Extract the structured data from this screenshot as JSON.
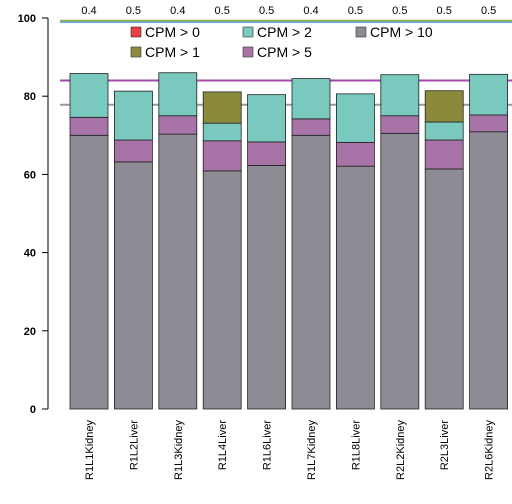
{
  "chart_data": {
    "type": "bar",
    "stacked": true,
    "categories": [
      "R1L1Kidney",
      "R1L2Liver",
      "R1L3Kidney",
      "R1L4Liver",
      "R1L6Liver",
      "R1L7Kidney",
      "R1L8Liver",
      "R2L2Kidney",
      "R2L3Liver",
      "R2L6Kidney"
    ],
    "top_labels": [
      "0.4",
      "0.5",
      "0.4",
      "0.5",
      "0.5",
      "0.4",
      "0.5",
      "0.5",
      "0.5",
      "0.5"
    ],
    "ylim": [
      0,
      100
    ],
    "yticks": [
      "0",
      "20",
      "40",
      "60",
      "80",
      "100"
    ],
    "ytick_values": [
      0,
      20,
      40,
      60,
      80,
      100
    ],
    "series": [
      {
        "name": "CPM > 10",
        "color": "#8e8b94",
        "values": [
          70.0,
          63.2,
          70.3,
          60.9,
          62.3,
          70.0,
          62.1,
          70.5,
          61.4,
          70.9
        ]
      },
      {
        "name": "CPM > 5",
        "color": "#a874a8",
        "values": [
          4.6,
          5.6,
          4.7,
          7.7,
          6.0,
          4.2,
          6.1,
          4.5,
          7.4,
          4.3
        ]
      },
      {
        "name": "CPM > 2",
        "color": "#79c9bf",
        "values": [
          11.2,
          12.5,
          11.0,
          4.5,
          12.1,
          10.3,
          12.4,
          10.5,
          4.6,
          10.4
        ]
      },
      {
        "name": "CPM > 1",
        "color": "#8b8a3a",
        "values": [
          0.0,
          0.0,
          0.0,
          8.0,
          0.0,
          0.0,
          0.0,
          0.0,
          8.0,
          0.0
        ]
      },
      {
        "name": "CPM > 0",
        "color": "#e84040",
        "values": [
          0,
          0,
          0,
          0,
          0,
          0,
          0,
          0,
          0,
          0
        ]
      }
    ],
    "legend": [
      {
        "label": "CPM > 0",
        "color": "#e84040"
      },
      {
        "label": "CPM > 2",
        "color": "#79c9bf"
      },
      {
        "label": "CPM > 10",
        "color": "#8e8b94"
      },
      {
        "label": "CPM > 1",
        "color": "#8b8a3a"
      },
      {
        "label": "CPM > 5",
        "color": "#a874a8"
      }
    ],
    "legend_position": "top",
    "reference_lines": [
      {
        "value": 99.0,
        "color": "#4fa6e0"
      },
      {
        "value": 99.3,
        "color": "#8fb25a"
      },
      {
        "value": 84.0,
        "color": "#a24aa6"
      },
      {
        "value": 77.8,
        "color": "#999999"
      }
    ],
    "grid": false,
    "title": "",
    "xlabel": "",
    "ylabel": ""
  }
}
